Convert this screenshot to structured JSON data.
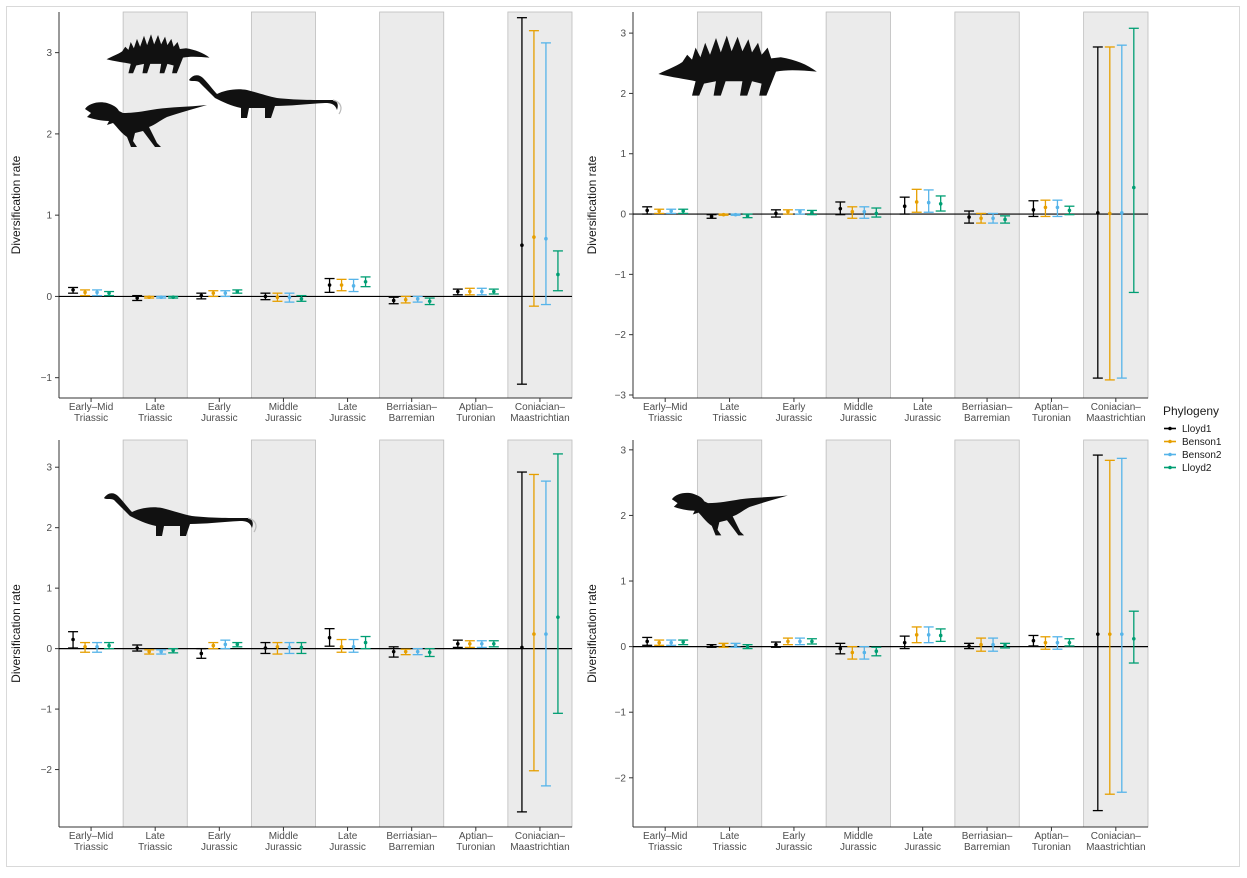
{
  "colors": {
    "Lloyd1": "#000000",
    "Benson1": "#E69F00",
    "Benson2": "#56B4E9",
    "Lloyd2": "#009E73",
    "band": "#ebebeb",
    "band_border": "#bdbdbd"
  },
  "legend": {
    "title": "Phylogeny",
    "placement": "right",
    "entries": [
      "Lloyd1",
      "Benson1",
      "Benson2",
      "Lloyd2"
    ]
  },
  "icons": [
    "stegosaur-silhouette-icon",
    "sauropod-silhouette-icon",
    "theropod-silhouette-icon"
  ],
  "chart_data": [
    {
      "type": "scatter",
      "title": "",
      "panel": "top-left",
      "icons": [
        "stegosaur-silhouette-icon",
        "sauropod-silhouette-icon",
        "theropod-silhouette-icon"
      ],
      "xlabel": "",
      "ylabel": "Diversification rate",
      "ylim": [
        -1.25,
        3.5
      ],
      "yticks": [
        -1,
        0,
        1,
        2,
        3
      ],
      "categories": [
        "Early–Mid\nTriassic",
        "Late\nTriassic",
        "Early\nJurassic",
        "Middle\nJurassic",
        "Late\nJurassic",
        "Berriasian–\nBarremian",
        "Aptian–\nTuronian",
        "Coniacian–\nMaastrichtian"
      ],
      "shaded_categories": [
        1,
        3,
        5,
        7
      ],
      "series": [
        {
          "name": "Lloyd1",
          "values": [
            0.08,
            -0.02,
            0.01,
            0.0,
            0.14,
            -0.05,
            0.06,
            0.63
          ],
          "lower": [
            0.04,
            -0.05,
            -0.03,
            -0.04,
            0.05,
            -0.09,
            0.02,
            -1.08
          ],
          "upper": [
            0.11,
            0.01,
            0.04,
            0.04,
            0.22,
            -0.01,
            0.09,
            3.43
          ]
        },
        {
          "name": "Benson1",
          "values": [
            0.05,
            -0.01,
            0.04,
            -0.01,
            0.14,
            -0.04,
            0.06,
            0.73
          ],
          "lower": [
            0.01,
            -0.02,
            0.0,
            -0.06,
            0.07,
            -0.08,
            0.02,
            -0.12
          ],
          "upper": [
            0.08,
            0.0,
            0.07,
            0.04,
            0.21,
            0.0,
            0.1,
            3.27
          ]
        },
        {
          "name": "Benson2",
          "values": [
            0.05,
            -0.01,
            0.04,
            -0.01,
            0.13,
            -0.03,
            0.06,
            0.71
          ],
          "lower": [
            0.01,
            -0.02,
            0.0,
            -0.07,
            0.06,
            -0.07,
            0.02,
            -0.1
          ],
          "upper": [
            0.08,
            0.0,
            0.07,
            0.04,
            0.21,
            0.0,
            0.1,
            3.12
          ]
        },
        {
          "name": "Lloyd2",
          "values": [
            0.04,
            -0.01,
            0.06,
            -0.03,
            0.18,
            -0.06,
            0.06,
            0.27
          ],
          "lower": [
            0.01,
            -0.02,
            0.04,
            -0.06,
            0.12,
            -0.1,
            0.03,
            0.07
          ],
          "upper": [
            0.06,
            0.0,
            0.08,
            0.01,
            0.24,
            -0.02,
            0.09,
            0.56
          ]
        }
      ]
    },
    {
      "type": "scatter",
      "title": "",
      "panel": "top-right",
      "icons": [
        "stegosaur-silhouette-icon"
      ],
      "xlabel": "",
      "ylabel": "Diversification rate",
      "ylim": [
        -3.05,
        3.35
      ],
      "yticks": [
        -3,
        -2,
        -1,
        0,
        1,
        2,
        3
      ],
      "categories": [
        "Early–Mid\nTriassic",
        "Late\nTriassic",
        "Early\nJurassic",
        "Middle\nJurassic",
        "Late\nJurassic",
        "Berriasian–\nBarremian",
        "Aptian–\nTuronian",
        "Coniacian–\nMaastrichtian"
      ],
      "shaded_categories": [
        1,
        3,
        5,
        7
      ],
      "series": [
        {
          "name": "Lloyd1",
          "values": [
            0.06,
            -0.04,
            0.01,
            0.09,
            0.13,
            -0.05,
            0.07,
            0.02
          ],
          "lower": [
            0.0,
            -0.07,
            -0.05,
            -0.01,
            0.0,
            -0.15,
            -0.04,
            -2.72
          ],
          "upper": [
            0.12,
            -0.01,
            0.07,
            0.2,
            0.28,
            0.05,
            0.22,
            2.77
          ]
        },
        {
          "name": "Benson1",
          "values": [
            0.05,
            -0.01,
            0.04,
            0.04,
            0.2,
            -0.07,
            0.11,
            0.01
          ],
          "lower": [
            0.01,
            -0.02,
            0.0,
            -0.07,
            0.03,
            -0.15,
            -0.04,
            -2.75
          ],
          "upper": [
            0.08,
            0.0,
            0.07,
            0.12,
            0.41,
            0.01,
            0.23,
            2.77
          ]
        },
        {
          "name": "Benson2",
          "values": [
            0.05,
            -0.01,
            0.04,
            0.04,
            0.19,
            -0.07,
            0.11,
            0.02
          ],
          "lower": [
            0.01,
            -0.02,
            0.0,
            -0.07,
            0.03,
            -0.15,
            -0.04,
            -2.72
          ],
          "upper": [
            0.08,
            0.0,
            0.07,
            0.12,
            0.4,
            0.01,
            0.23,
            2.8
          ]
        },
        {
          "name": "Lloyd2",
          "values": [
            0.05,
            -0.03,
            0.03,
            0.01,
            0.17,
            -0.09,
            0.06,
            0.44
          ],
          "lower": [
            0.01,
            -0.06,
            -0.01,
            -0.05,
            0.05,
            -0.15,
            -0.01,
            -1.3
          ],
          "upper": [
            0.08,
            0.0,
            0.06,
            0.1,
            0.3,
            -0.03,
            0.13,
            3.08
          ]
        }
      ]
    },
    {
      "type": "scatter",
      "title": "",
      "panel": "bottom-left",
      "icons": [
        "sauropod-silhouette-icon"
      ],
      "xlabel": "",
      "ylabel": "Diversification rate",
      "ylim": [
        -2.95,
        3.45
      ],
      "yticks": [
        -2,
        -1,
        0,
        1,
        2,
        3
      ],
      "categories": [
        "Early–Mid\nTriassic",
        "Late\nTriassic",
        "Early\nJurassic",
        "Middle\nJurassic",
        "Late\nJurassic",
        "Berriasian–\nBarremian",
        "Aptian–\nTuronian",
        "Coniacian–\nMaastrichtian"
      ],
      "shaded_categories": [
        1,
        3,
        5,
        7
      ],
      "series": [
        {
          "name": "Lloyd1",
          "values": [
            0.15,
            0.01,
            -0.08,
            0.01,
            0.18,
            -0.05,
            0.08,
            0.02
          ],
          "lower": [
            0.01,
            -0.04,
            -0.16,
            -0.08,
            0.04,
            -0.14,
            0.02,
            -2.7
          ],
          "upper": [
            0.28,
            0.06,
            0.0,
            0.1,
            0.33,
            0.03,
            0.14,
            2.92
          ]
        },
        {
          "name": "Benson1",
          "values": [
            0.03,
            -0.05,
            0.05,
            0.03,
            0.03,
            -0.05,
            0.08,
            0.24
          ],
          "lower": [
            -0.06,
            -0.09,
            0.0,
            -0.09,
            -0.06,
            -0.1,
            0.02,
            -2.02
          ],
          "upper": [
            0.1,
            -0.02,
            0.1,
            0.1,
            0.15,
            -0.01,
            0.13,
            2.88
          ]
        },
        {
          "name": "Benson2",
          "values": [
            0.03,
            -0.05,
            0.07,
            0.02,
            0.03,
            -0.05,
            0.08,
            0.24
          ],
          "lower": [
            -0.06,
            -0.09,
            0.0,
            -0.08,
            -0.06,
            -0.1,
            0.02,
            -2.27
          ],
          "upper": [
            0.1,
            -0.02,
            0.14,
            0.1,
            0.15,
            0.0,
            0.13,
            2.77
          ]
        },
        {
          "name": "Lloyd2",
          "values": [
            0.05,
            -0.03,
            0.07,
            0.02,
            0.1,
            -0.06,
            0.08,
            0.52
          ],
          "lower": [
            0.0,
            -0.07,
            0.03,
            -0.08,
            0.0,
            -0.13,
            0.03,
            -1.07
          ],
          "upper": [
            0.1,
            0.0,
            0.1,
            0.1,
            0.2,
            0.0,
            0.13,
            3.22
          ]
        }
      ]
    },
    {
      "type": "scatter",
      "title": "",
      "panel": "bottom-right",
      "icons": [
        "theropod-silhouette-icon"
      ],
      "xlabel": "",
      "ylabel": "Diversification rate",
      "ylim": [
        -2.75,
        3.15
      ],
      "yticks": [
        -2,
        -1,
        0,
        1,
        2,
        3
      ],
      "categories": [
        "Early–Mid\nTriassic",
        "Late\nTriassic",
        "Early\nJurassic",
        "Middle\nJurassic",
        "Late\nJurassic",
        "Berriasian–\nBarremian",
        "Aptian–\nTuronian",
        "Coniacian–\nMaastrichtian"
      ],
      "shaded_categories": [
        1,
        3,
        5,
        7
      ],
      "series": [
        {
          "name": "Lloyd1",
          "values": [
            0.08,
            0.01,
            0.03,
            -0.03,
            0.06,
            0.01,
            0.09,
            0.19
          ],
          "lower": [
            0.02,
            -0.01,
            -0.01,
            -0.11,
            -0.03,
            -0.03,
            0.01,
            -2.5
          ],
          "upper": [
            0.14,
            0.03,
            0.07,
            0.05,
            0.16,
            0.05,
            0.17,
            2.92
          ]
        },
        {
          "name": "Benson1",
          "values": [
            0.06,
            0.02,
            0.08,
            -0.09,
            0.18,
            0.03,
            0.06,
            0.19
          ],
          "lower": [
            0.02,
            -0.01,
            0.03,
            -0.19,
            0.06,
            -0.07,
            -0.04,
            -2.25
          ],
          "upper": [
            0.1,
            0.05,
            0.13,
            0.0,
            0.3,
            0.13,
            0.15,
            2.84
          ]
        },
        {
          "name": "Benson2",
          "values": [
            0.06,
            0.02,
            0.08,
            -0.09,
            0.18,
            0.03,
            0.06,
            0.19
          ],
          "lower": [
            0.02,
            -0.01,
            0.03,
            -0.19,
            0.06,
            -0.07,
            -0.04,
            -2.22
          ],
          "upper": [
            0.1,
            0.05,
            0.13,
            0.0,
            0.3,
            0.13,
            0.15,
            2.87
          ]
        },
        {
          "name": "Lloyd2",
          "values": [
            0.07,
            0.0,
            0.08,
            -0.07,
            0.17,
            0.02,
            0.06,
            0.12
          ],
          "lower": [
            0.03,
            -0.03,
            0.04,
            -0.14,
            0.08,
            -0.02,
            0.01,
            -0.25
          ],
          "upper": [
            0.1,
            0.03,
            0.12,
            -0.01,
            0.27,
            0.05,
            0.12,
            0.54
          ]
        }
      ]
    }
  ]
}
